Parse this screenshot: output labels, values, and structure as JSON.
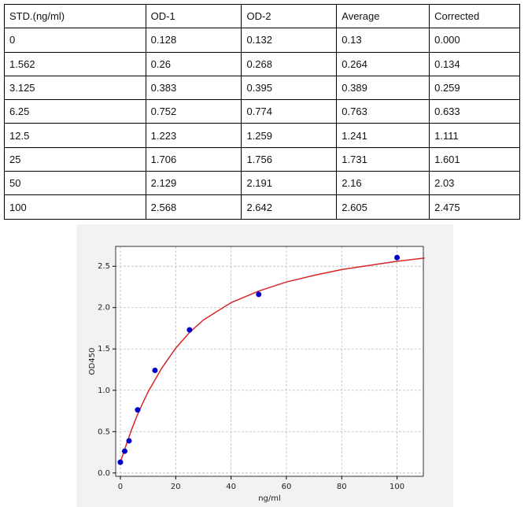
{
  "table": {
    "header": [
      "STD.(ng/ml)",
      "OD-1",
      "OD-2",
      "Average",
      "Corrected"
    ],
    "rows": [
      [
        "0",
        "0.128",
        "0.132",
        "0.13",
        "0.000"
      ],
      [
        "1.562",
        "0.26",
        "0.268",
        "0.264",
        "0.134"
      ],
      [
        "3.125",
        "0.383",
        "0.395",
        "0.389",
        "0.259"
      ],
      [
        "6.25",
        "0.752",
        "0.774",
        "0.763",
        "0.633"
      ],
      [
        "12.5",
        "1.223",
        "1.259",
        "1.241",
        "1.111"
      ],
      [
        "25",
        "1.706",
        "1.756",
        "1.731",
        "1.601"
      ],
      [
        "50",
        "2.129",
        "2.191",
        "2.16",
        "2.03"
      ],
      [
        "100",
        "2.568",
        "2.642",
        "2.605",
        "2.475"
      ]
    ]
  },
  "chart_data": {
    "type": "scatter",
    "x_label": "ng/ml",
    "y_label": "OD450",
    "series": [
      {
        "color": "#0000cc",
        "x": [
          0,
          1.562,
          3.125,
          6.25,
          12.5,
          25,
          50,
          100
        ],
        "values": [
          0.13,
          0.264,
          0.389,
          0.763,
          1.241,
          1.731,
          2.16,
          2.605
        ]
      },
      {
        "color": "#d62728",
        "x": [
          0,
          2,
          4,
          6,
          8,
          10,
          15,
          20,
          25,
          30,
          40,
          50,
          60,
          70,
          80,
          90,
          100,
          110
        ],
        "values": [
          0.13,
          0.33,
          0.52,
          0.69,
          0.84,
          0.98,
          1.27,
          1.51,
          1.7,
          1.85,
          2.06,
          2.2,
          2.31,
          2.39,
          2.46,
          2.51,
          2.56,
          2.6
        ]
      }
    ],
    "xlim": [
      -1.7,
      109.5
    ],
    "ylim": [
      -0.04,
      2.74
    ],
    "xticks": [
      0,
      20,
      40,
      60,
      80,
      100
    ],
    "yticks": [
      {
        "value": 0,
        "label": "0.0"
      },
      {
        "value": 0.5,
        "label": "0.5"
      },
      {
        "value": 1,
        "label": "1.0"
      },
      {
        "value": 1.5,
        "label": "1.5"
      },
      {
        "value": 2,
        "label": "2.0"
      },
      {
        "value": 2.5,
        "label": "2.5"
      }
    ],
    "grid": true
  }
}
